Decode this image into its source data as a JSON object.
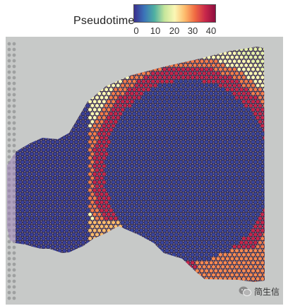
{
  "legend": {
    "title": "Pseudotime",
    "ticks": [
      "0",
      "10",
      "20",
      "30",
      "40"
    ],
    "tick_values": [
      0,
      10,
      20,
      30,
      40
    ],
    "range": [
      0,
      44
    ],
    "colormap": [
      "#3a2f8f",
      "#3b74b9",
      "#4fb0a2",
      "#c6e69b",
      "#fbf7b5",
      "#fdbb6c",
      "#f06a42",
      "#c9284b",
      "#8e0d3f"
    ]
  },
  "image": {
    "description_icon": "tissue-section-spatial-plot",
    "background_color": "#c7c9c8",
    "tissue_color": "#9b7fb6"
  },
  "watermark": {
    "icon": "wechat-icon",
    "text": "简生信"
  }
}
